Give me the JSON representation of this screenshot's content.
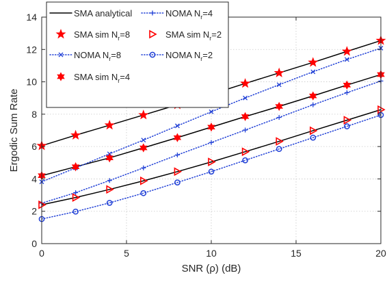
{
  "chart_data": {
    "type": "line",
    "xlabel": "SNR (ρ) (dB)",
    "ylabel": "Ergodic Sum Rate",
    "xlim": [
      0,
      20
    ],
    "ylim": [
      0,
      14
    ],
    "xticks": [
      0,
      5,
      10,
      15,
      20
    ],
    "yticks": [
      0,
      2,
      4,
      6,
      8,
      10,
      12,
      14
    ],
    "grid": true,
    "legend_position": "top-left",
    "x": [
      0,
      2,
      4,
      6,
      8,
      10,
      12,
      14,
      16,
      18,
      20
    ],
    "series": [
      {
        "name": "SMA analytical",
        "role": "line",
        "color": "#000000",
        "style": "solid",
        "marker": "none",
        "groups": [
          [
            6.05,
            6.7,
            7.32,
            7.95,
            8.58,
            9.23,
            9.9,
            10.55,
            11.2,
            11.88,
            12.55
          ],
          [
            4.2,
            4.75,
            5.3,
            5.92,
            6.55,
            7.2,
            7.85,
            8.48,
            9.13,
            9.8,
            10.45
          ],
          [
            2.4,
            2.85,
            3.35,
            3.88,
            4.45,
            5.05,
            5.68,
            6.32,
            6.98,
            7.63,
            8.28
          ]
        ]
      },
      {
        "name": "SMA sim N",
        "sub": "r",
        "suffix": "=8",
        "role": "marker",
        "color": "#ff0000",
        "marker": "star",
        "values": [
          6.05,
          6.7,
          7.32,
          7.95,
          8.58,
          9.23,
          9.9,
          10.55,
          11.2,
          11.88,
          12.55
        ]
      },
      {
        "name": "NOMA N",
        "sub": "r",
        "suffix": "=8",
        "role": "line",
        "color": "#1f3fd6",
        "style": "dotted",
        "marker": "x",
        "values": [
          3.82,
          4.68,
          5.55,
          6.4,
          7.28,
          8.15,
          9.0,
          9.82,
          10.62,
          11.38,
          12.08
        ]
      },
      {
        "name": "SMA sim N",
        "sub": "r",
        "suffix": "=4",
        "role": "marker",
        "color": "#ff0000",
        "marker": "hexstar",
        "values": [
          4.2,
          4.75,
          5.3,
          5.92,
          6.55,
          7.2,
          7.85,
          8.48,
          9.13,
          9.8,
          10.45
        ]
      },
      {
        "name": "NOMA N",
        "sub": "r",
        "suffix": "=4",
        "role": "line",
        "color": "#1f3fd6",
        "style": "dotted",
        "marker": "plus",
        "values": [
          2.5,
          3.15,
          3.9,
          4.68,
          5.48,
          6.25,
          7.02,
          7.8,
          8.58,
          9.33,
          10.05
        ]
      },
      {
        "name": "SMA sim N",
        "sub": "r",
        "suffix": "=2",
        "role": "marker",
        "color": "#ff0000",
        "marker": "triangle",
        "values": [
          2.4,
          2.85,
          3.35,
          3.88,
          4.45,
          5.05,
          5.68,
          6.32,
          6.98,
          7.63,
          8.28
        ]
      },
      {
        "name": "NOMA N",
        "sub": "r",
        "suffix": "=2",
        "role": "line",
        "color": "#1f3fd6",
        "style": "dotted",
        "marker": "circle",
        "values": [
          1.52,
          1.98,
          2.52,
          3.12,
          3.78,
          4.45,
          5.15,
          5.85,
          6.55,
          7.25,
          7.95
        ]
      }
    ]
  }
}
